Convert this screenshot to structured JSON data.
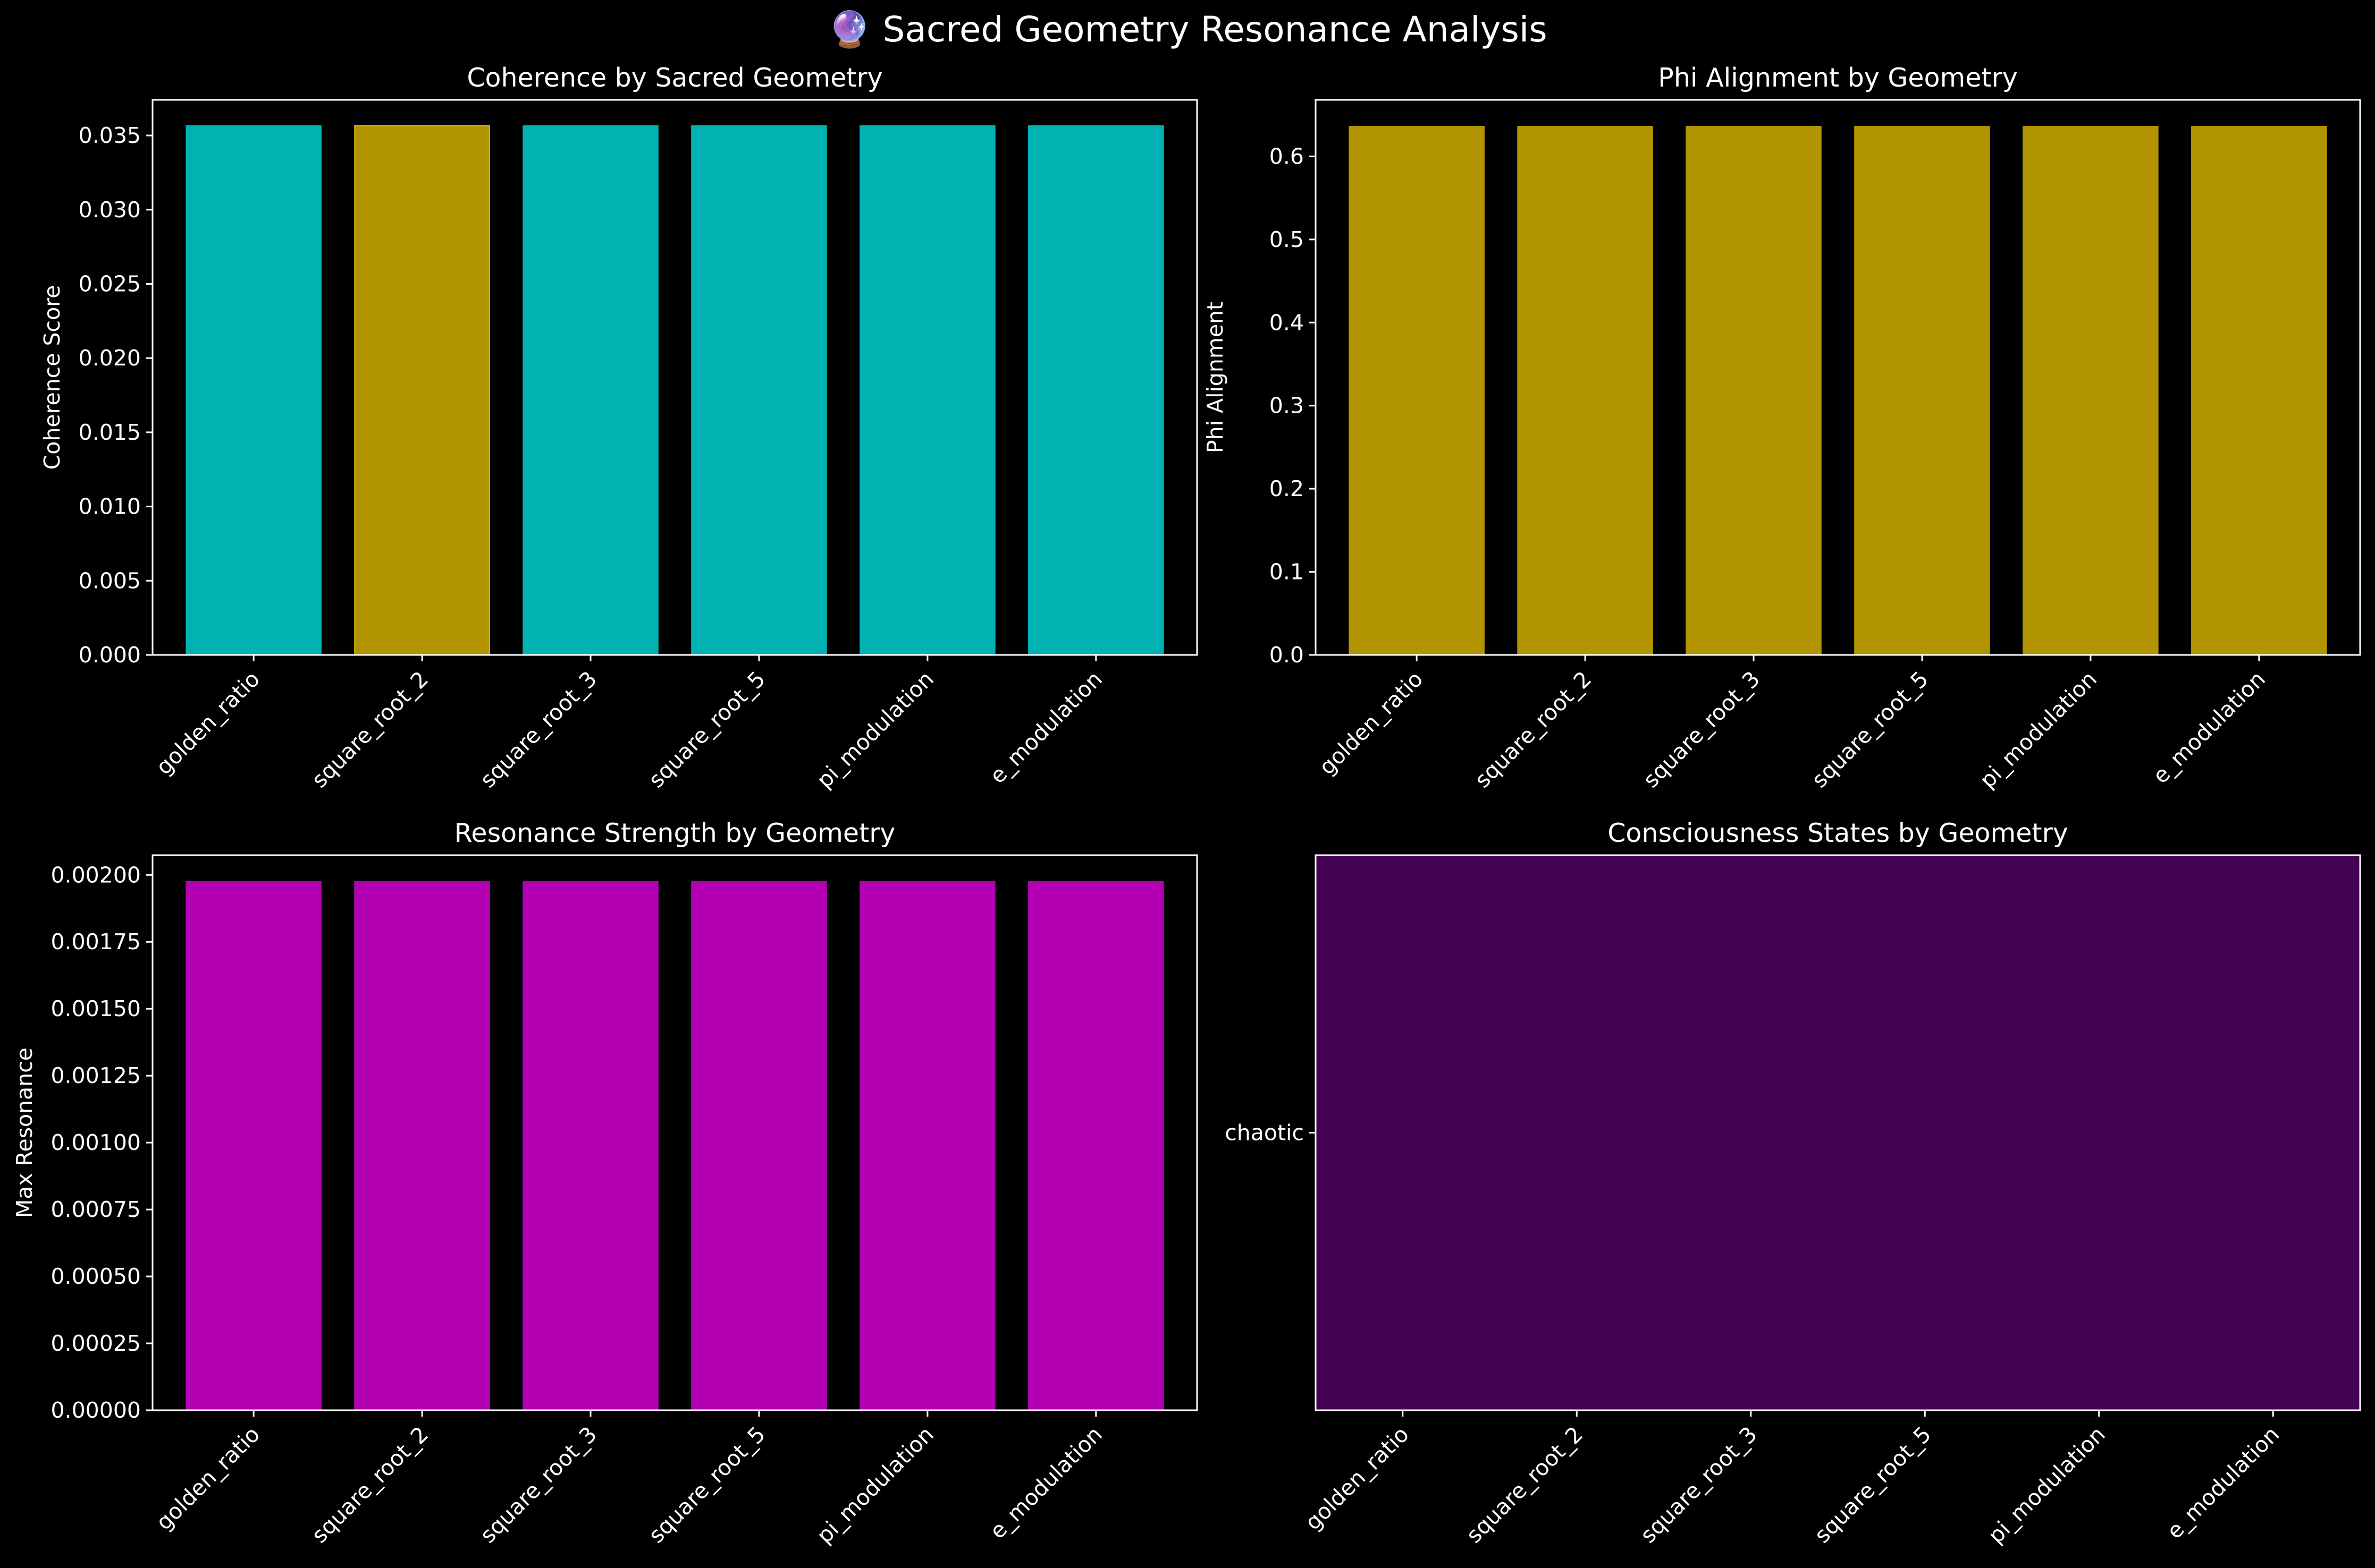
{
  "figure": {
    "title": "🔮 Sacred Geometry Resonance Analysis",
    "background": "#000000",
    "text_color": "#ffffff"
  },
  "chart_data": [
    {
      "type": "bar",
      "title": "Coherence by Sacred Geometry",
      "xlabel": "",
      "ylabel": "Coherence Score",
      "categories": [
        "golden_ratio",
        "square_root_2",
        "square_root_3",
        "square_root_5",
        "pi_modulation",
        "e_modulation"
      ],
      "values": [
        0.03565,
        0.03566,
        0.03565,
        0.03565,
        0.03565,
        0.03565
      ],
      "colors": [
        "#00b2b2",
        "#b29400",
        "#00b2b2",
        "#00b2b2",
        "#00b2b2",
        "#00b2b2"
      ],
      "edge_colors": [
        "#00b2b2",
        "#e0c000",
        "#00b2b2",
        "#00b2b2",
        "#00b2b2",
        "#00b2b2"
      ],
      "ylim": [
        0,
        0.0374
      ],
      "yticks": [
        "0.000",
        "0.005",
        "0.010",
        "0.015",
        "0.020",
        "0.025",
        "0.030",
        "0.035"
      ],
      "ytick_values": [
        0,
        0.005,
        0.01,
        0.015,
        0.02,
        0.025,
        0.03,
        0.035
      ]
    },
    {
      "type": "bar",
      "title": "Phi Alignment by Geometry",
      "xlabel": "",
      "ylabel": "Phi Alignment",
      "categories": [
        "golden_ratio",
        "square_root_2",
        "square_root_3",
        "square_root_5",
        "pi_modulation",
        "e_modulation"
      ],
      "values": [
        0.636,
        0.636,
        0.636,
        0.636,
        0.636,
        0.636
      ],
      "colors": [
        "#b29400",
        "#b29400",
        "#b29400",
        "#b29400",
        "#b29400",
        "#b29400"
      ],
      "ylim": [
        0,
        0.668
      ],
      "yticks": [
        "0.0",
        "0.1",
        "0.2",
        "0.3",
        "0.4",
        "0.5",
        "0.6"
      ],
      "ytick_values": [
        0,
        0.1,
        0.2,
        0.3,
        0.4,
        0.5,
        0.6
      ]
    },
    {
      "type": "bar",
      "title": "Resonance Strength by Geometry",
      "xlabel": "",
      "ylabel": "Max Resonance",
      "categories": [
        "golden_ratio",
        "square_root_2",
        "square_root_3",
        "square_root_5",
        "pi_modulation",
        "e_modulation"
      ],
      "values": [
        0.001975,
        0.001975,
        0.001975,
        0.001975,
        0.001975,
        0.001975
      ],
      "colors": [
        "#b200b2",
        "#b200b2",
        "#b200b2",
        "#b200b2",
        "#b200b2",
        "#b200b2"
      ],
      "ylim": [
        0,
        0.002074
      ],
      "yticks": [
        "0.00000",
        "0.00025",
        "0.00050",
        "0.00075",
        "0.00100",
        "0.00125",
        "0.00150",
        "0.00175",
        "0.00200"
      ],
      "ytick_values": [
        0,
        0.00025,
        0.0005,
        0.00075,
        0.001,
        0.00125,
        0.0015,
        0.00175,
        0.002
      ]
    },
    {
      "type": "heatmap",
      "title": "Consciousness States by Geometry",
      "xlabel": "",
      "ylabel": "",
      "x": [
        "golden_ratio",
        "square_root_2",
        "square_root_3",
        "square_root_5",
        "pi_modulation",
        "e_modulation"
      ],
      "y": [
        "chaotic"
      ],
      "values": [
        [
          1,
          1,
          1,
          1,
          1,
          1
        ]
      ],
      "cell_color": "#440154"
    }
  ]
}
